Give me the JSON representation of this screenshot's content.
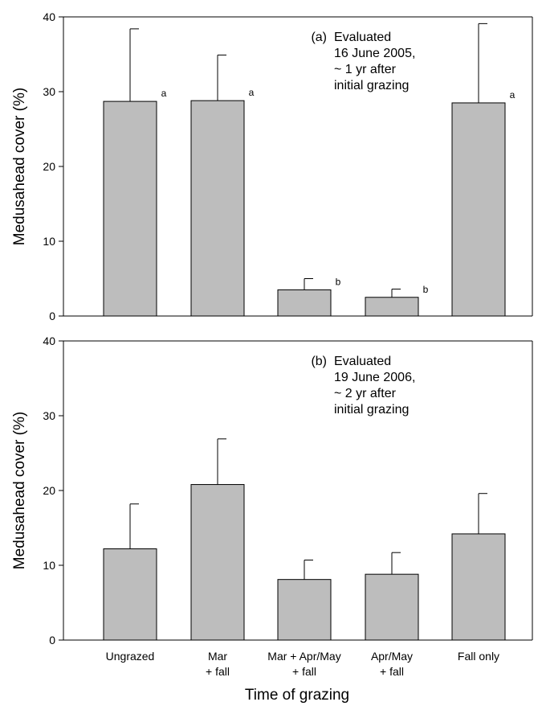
{
  "chart_data": [
    {
      "type": "bar",
      "panel_label": "(a)",
      "annotation": [
        "Evaluated",
        "16 June 2005,",
        "~ 1 yr after",
        "initial grazing"
      ],
      "ylabel": "Medusahead cover (%)",
      "xlabel": "",
      "ylim": [
        0,
        40
      ],
      "yticks": [
        0,
        10,
        20,
        30,
        40
      ],
      "categories": [
        "Ungrazed",
        "Mar + fall",
        "Mar + Apr/May + fall",
        "Apr/May + fall",
        "Fall only"
      ],
      "values": [
        28.7,
        28.8,
        3.5,
        2.5,
        28.5
      ],
      "errors": [
        9.7,
        6.1,
        1.5,
        1.1,
        10.6
      ],
      "significance": [
        "a",
        "a",
        "b",
        "b",
        "a"
      ],
      "bar_color": "#bdbdbd"
    },
    {
      "type": "bar",
      "panel_label": "(b)",
      "annotation": [
        "Evaluated",
        "19 June 2006,",
        "~ 2 yr after",
        "initial grazing"
      ],
      "ylabel": "Medusahead cover (%)",
      "xlabel": "Time of grazing",
      "ylim": [
        0,
        40
      ],
      "yticks": [
        0,
        10,
        20,
        30,
        40
      ],
      "categories": [
        "Ungrazed",
        "Mar + fall",
        "Mar + Apr/May + fall",
        "Apr/May + fall",
        "Fall only"
      ],
      "category_lines": [
        [
          "Ungrazed"
        ],
        [
          "Mar",
          "+ fall"
        ],
        [
          "Mar + Apr/May",
          "+ fall"
        ],
        [
          "Apr/May",
          "+ fall"
        ],
        [
          "Fall only"
        ]
      ],
      "values": [
        12.2,
        20.8,
        8.1,
        8.8,
        14.2
      ],
      "errors": [
        6.0,
        6.1,
        2.6,
        2.9,
        5.4
      ],
      "bar_color": "#bdbdbd"
    }
  ]
}
